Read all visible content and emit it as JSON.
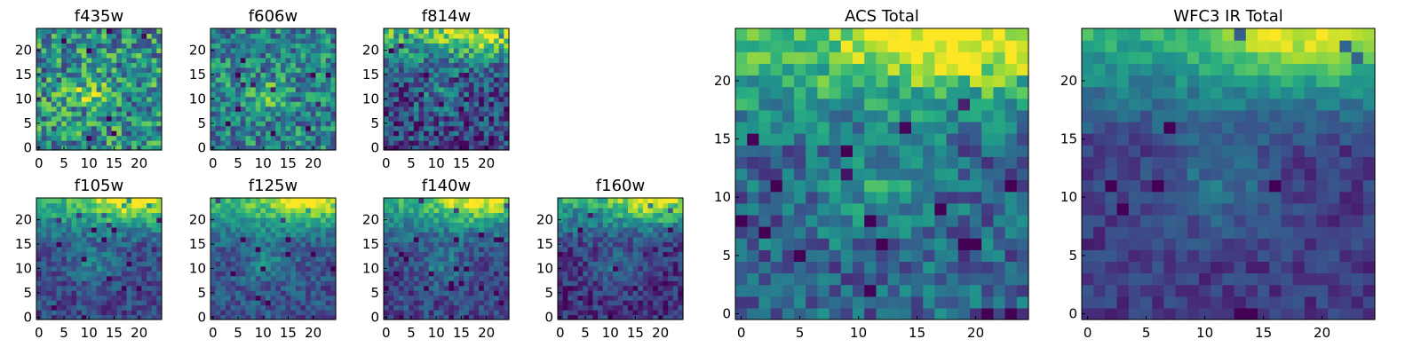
{
  "colormap": "viridis",
  "chart_data": [
    {
      "type": "heatmap",
      "title": "f435w",
      "xlim": [
        0,
        25
      ],
      "ylim": [
        0,
        25
      ],
      "xticks": [
        "0",
        "5",
        "10",
        "15",
        "20"
      ],
      "yticks": [
        "0",
        "5",
        "10",
        "15",
        "20"
      ],
      "grid_size": 25,
      "pattern": "noisy, faint bright patch near center"
    },
    {
      "type": "heatmap",
      "title": "f606w",
      "xlim": [
        0,
        25
      ],
      "ylim": [
        0,
        25
      ],
      "xticks": [
        "0",
        "5",
        "10",
        "15",
        "20"
      ],
      "yticks": [
        "0",
        "5",
        "10",
        "15",
        "20"
      ],
      "grid_size": 25,
      "pattern": "noisy, bright patch near center"
    },
    {
      "type": "heatmap",
      "title": "f814w",
      "xlim": [
        0,
        25
      ],
      "ylim": [
        0,
        25
      ],
      "xticks": [
        "0",
        "5",
        "10",
        "15",
        "20"
      ],
      "yticks": [
        "0",
        "5",
        "10",
        "15",
        "20"
      ],
      "grid_size": 25,
      "pattern": "bright top and central patch"
    },
    {
      "type": "heatmap",
      "title": "f105w",
      "xlim": [
        0,
        25
      ],
      "ylim": [
        0,
        25
      ],
      "xticks": [
        "0",
        "5",
        "10",
        "15",
        "20"
      ],
      "yticks": [
        "0",
        "5",
        "10",
        "15",
        "20"
      ],
      "grid_size": 25,
      "pattern": "bright top-right, darker bottom"
    },
    {
      "type": "heatmap",
      "title": "f125w",
      "xlim": [
        0,
        25
      ],
      "ylim": [
        0,
        25
      ],
      "xticks": [
        "0",
        "5",
        "10",
        "15",
        "20"
      ],
      "yticks": [
        "0",
        "5",
        "10",
        "15",
        "20"
      ],
      "grid_size": 25,
      "pattern": "bright top, darker bottom"
    },
    {
      "type": "heatmap",
      "title": "f140w",
      "xlim": [
        0,
        25
      ],
      "ylim": [
        0,
        25
      ],
      "xticks": [
        "0",
        "5",
        "10",
        "15",
        "20"
      ],
      "yticks": [
        "0",
        "5",
        "10",
        "15",
        "20"
      ],
      "grid_size": 25,
      "pattern": "bright top, darker bottom"
    },
    {
      "type": "heatmap",
      "title": "f160w",
      "xlim": [
        0,
        25
      ],
      "ylim": [
        0,
        25
      ],
      "xticks": [
        "0",
        "5",
        "10",
        "15",
        "20"
      ],
      "yticks": [
        "0",
        "5",
        "10",
        "15",
        "20"
      ],
      "grid_size": 25,
      "pattern": "bright top, dark bottom"
    },
    {
      "type": "heatmap",
      "title": "ACS Total",
      "xlim": [
        0,
        25
      ],
      "ylim": [
        0,
        25
      ],
      "xticks": [
        "0",
        "5",
        "10",
        "15",
        "20"
      ],
      "yticks": [
        "0",
        "5",
        "10",
        "15",
        "20"
      ],
      "grid_size": 25,
      "pattern": "bright top and central patch"
    },
    {
      "type": "heatmap",
      "title": "WFC3 IR Total",
      "xlim": [
        0,
        25
      ],
      "ylim": [
        0,
        25
      ],
      "xticks": [
        "0",
        "5",
        "10",
        "15",
        "20"
      ],
      "yticks": [
        "0",
        "5",
        "10",
        "15",
        "20"
      ],
      "grid_size": 25,
      "pattern": "bright top, dark bottom"
    }
  ]
}
